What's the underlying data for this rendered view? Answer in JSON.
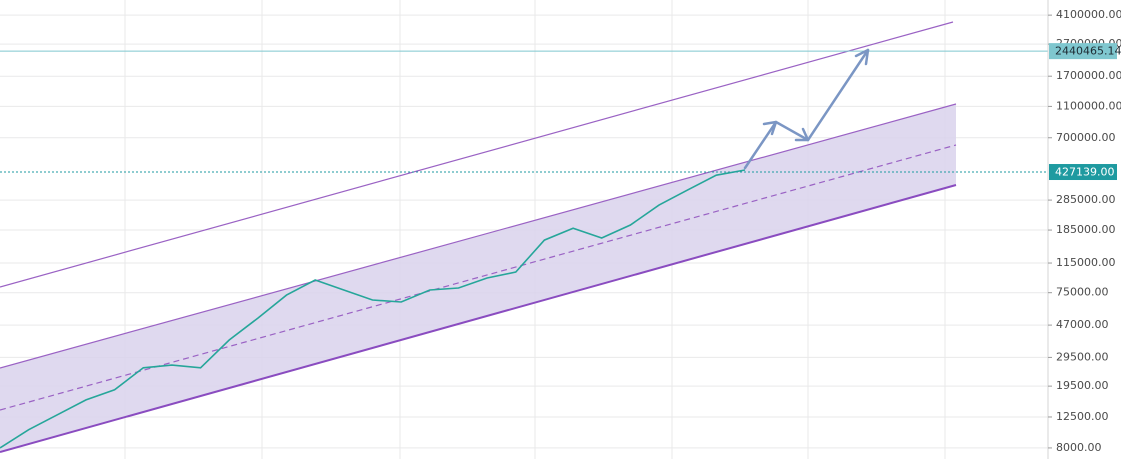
{
  "chart_data": {
    "type": "line",
    "log_scale": true,
    "grid": true,
    "series": [
      {
        "color": "#26a69a",
        "values": [
          8000,
          10400,
          12900,
          16000,
          18500,
          25400,
          26400,
          25400,
          37900,
          52000,
          72400,
          90000,
          78000,
          67500,
          65600,
          78000,
          80200,
          92700,
          101000,
          160000,
          190000,
          165000,
          199000,
          265000,
          330000,
          408000,
          440000
        ]
      }
    ],
    "ylim": [
      6820,
      5100000
    ],
    "yticks": [
      {
        "value": 8000,
        "label": "8000.00"
      },
      {
        "value": 12500,
        "label": "12500.00"
      },
      {
        "value": 19500,
        "label": "19500.00"
      },
      {
        "value": 29500,
        "label": "29500.00"
      },
      {
        "value": 47000,
        "label": "47000.00"
      },
      {
        "value": 75000,
        "label": "75000.00"
      },
      {
        "value": 115000,
        "label": "115000.00"
      },
      {
        "value": 185000,
        "label": "185000.00"
      },
      {
        "value": 285000,
        "label": "285000.00"
      },
      {
        "value": 700000,
        "label": "700000.00"
      },
      {
        "value": 1100000,
        "label": "1100000.00"
      },
      {
        "value": 1700000,
        "label": "1700000.00"
      },
      {
        "value": 2700000,
        "label": "2700000.00"
      },
      {
        "value": 4100000,
        "label": "4100000.00"
      }
    ],
    "price_lines": [
      {
        "value": 2440465.14,
        "color": "#7fc7cf",
        "text_color": "#1e2b33",
        "dash": false
      },
      {
        "value": 427139,
        "label": "427139.00",
        "color": "#1e9aa0",
        "text_color": "#ffffff",
        "dash": true
      }
    ]
  }
}
